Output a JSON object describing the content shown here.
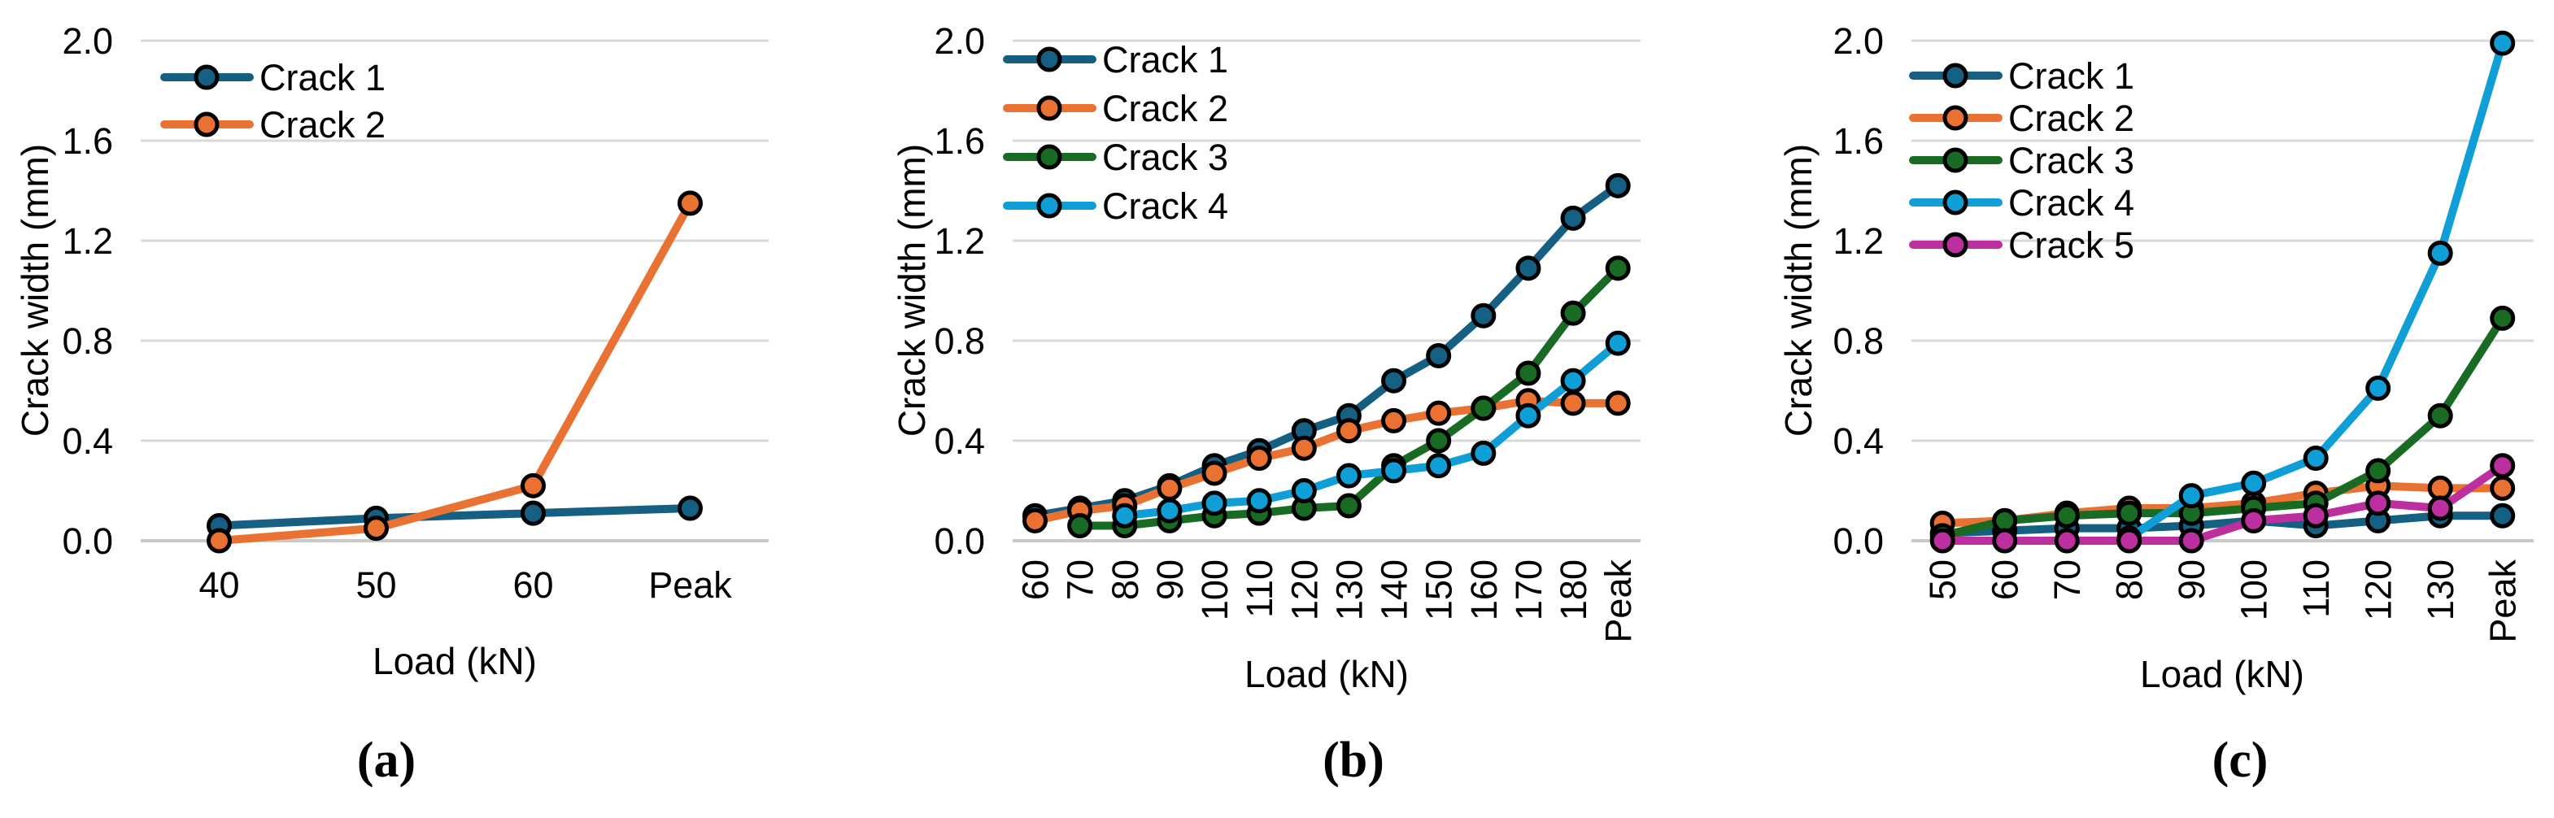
{
  "page": {
    "background": "#ffffff",
    "grid_color": "#d9d9d9",
    "axis_color": "#c9c9c9",
    "text_color": "#000000"
  },
  "chart_data": [
    {
      "type": "line",
      "panel_label": "(a)",
      "title": "",
      "xlabel": "Load (kN)",
      "ylabel": "Crack width (mm)",
      "x_categories": [
        "40",
        "50",
        "60",
        "Peak"
      ],
      "x_tick_rotation": 0,
      "ylim": [
        0.0,
        2.0
      ],
      "y_ticks": [
        "0.0",
        "0.4",
        "0.8",
        "1.2",
        "1.6",
        "2.0"
      ],
      "grid": "horizontal",
      "legend_position": "top-left",
      "series": [
        {
          "name": "Crack 1",
          "color": "#156082",
          "values": [
            0.06,
            0.09,
            0.11,
            0.13
          ]
        },
        {
          "name": "Crack 2",
          "color": "#E97132",
          "values": [
            0.0,
            0.05,
            0.22,
            1.35
          ]
        }
      ]
    },
    {
      "type": "line",
      "panel_label": "(b)",
      "title": "",
      "xlabel": "Load (kN)",
      "ylabel": "Crack width (mm)",
      "x_categories": [
        "60",
        "70",
        "80",
        "90",
        "100",
        "110",
        "120",
        "130",
        "140",
        "150",
        "160",
        "170",
        "180",
        "Peak"
      ],
      "x_tick_rotation": -90,
      "ylim": [
        0.0,
        2.0
      ],
      "y_ticks": [
        "0.0",
        "0.4",
        "0.8",
        "1.2",
        "1.6",
        "2.0"
      ],
      "grid": "horizontal",
      "legend_position": "top-left",
      "series": [
        {
          "name": "Crack 1",
          "color": "#156082",
          "values": [
            0.1,
            0.13,
            0.16,
            0.22,
            0.3,
            0.36,
            0.44,
            0.5,
            0.64,
            0.74,
            0.9,
            1.09,
            1.29,
            1.42
          ]
        },
        {
          "name": "Crack 2",
          "color": "#E97132",
          "values": [
            0.08,
            0.12,
            0.14,
            0.21,
            0.27,
            0.33,
            0.37,
            0.44,
            0.48,
            0.51,
            0.53,
            0.56,
            0.55,
            0.55
          ]
        },
        {
          "name": "Crack 3",
          "color": "#196B24",
          "values": [
            null,
            0.06,
            0.06,
            0.08,
            0.1,
            0.11,
            0.13,
            0.14,
            0.3,
            0.4,
            0.53,
            0.67,
            0.91,
            1.09
          ]
        },
        {
          "name": "Crack 4",
          "color": "#0F9ED5",
          "values": [
            null,
            null,
            0.1,
            0.12,
            0.15,
            0.16,
            0.2,
            0.26,
            0.28,
            0.3,
            0.35,
            0.5,
            0.64,
            0.79
          ]
        }
      ]
    },
    {
      "type": "line",
      "panel_label": "(c)",
      "title": "",
      "xlabel": "Load (kN)",
      "ylabel": "Crack width (mm)",
      "x_categories": [
        "50",
        "60",
        "70",
        "80",
        "90",
        "100",
        "110",
        "120",
        "130",
        "Peak"
      ],
      "x_tick_rotation": -90,
      "ylim": [
        0.0,
        2.0
      ],
      "y_ticks": [
        "0.0",
        "0.4",
        "0.8",
        "1.2",
        "1.6",
        "2.0"
      ],
      "grid": "horizontal",
      "legend_position": "top-left",
      "series": [
        {
          "name": "Crack 1",
          "color": "#156082",
          "values": [
            0.03,
            0.04,
            0.05,
            0.05,
            0.06,
            0.08,
            0.06,
            0.08,
            0.1,
            0.1
          ]
        },
        {
          "name": "Crack 2",
          "color": "#E97132",
          "values": [
            0.07,
            0.08,
            0.11,
            0.13,
            0.13,
            0.15,
            0.19,
            0.22,
            0.21,
            0.21
          ]
        },
        {
          "name": "Crack 3",
          "color": "#196B24",
          "values": [
            0.02,
            0.08,
            0.1,
            0.11,
            0.11,
            0.13,
            0.15,
            0.28,
            0.5,
            0.89
          ]
        },
        {
          "name": "Crack 4",
          "color": "#0F9ED5",
          "values": [
            null,
            null,
            null,
            0.01,
            0.18,
            0.23,
            0.33,
            0.61,
            1.15,
            1.99
          ]
        },
        {
          "name": "Crack 5",
          "color": "#BC2F9F",
          "values": [
            0.0,
            0.0,
            0.0,
            0.0,
            0.0,
            0.08,
            0.1,
            0.15,
            0.13,
            0.3
          ]
        }
      ]
    }
  ]
}
